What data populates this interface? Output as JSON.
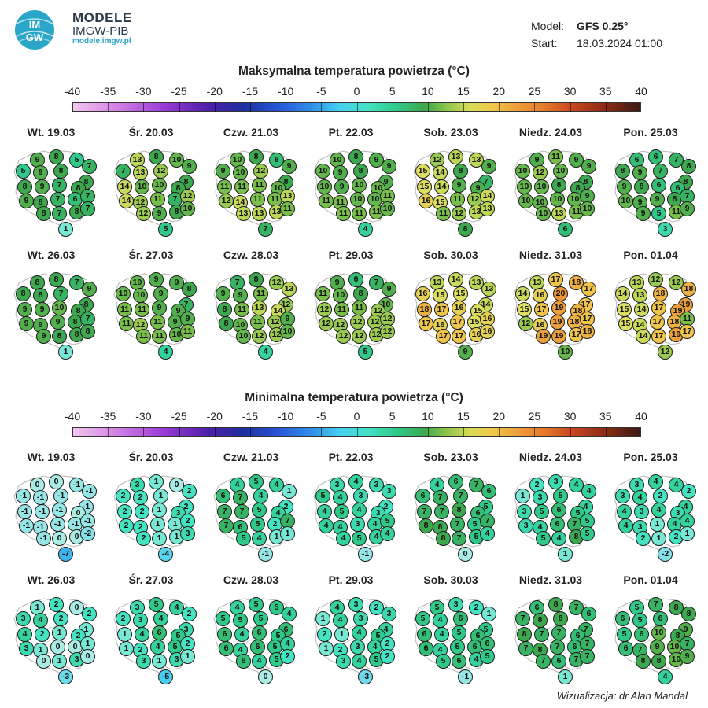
{
  "brand": {
    "logo_text": "IMGW",
    "title": "MODELE",
    "org": "IMGW-PIB",
    "url": "modele.imgw.pl"
  },
  "meta": {
    "model_label": "Model:",
    "model_value": "GFS 0.25°",
    "start_label": "Start:",
    "start_value": "18.03.2024 01:00"
  },
  "scale_ticks": [
    "-40",
    "-35",
    "-30",
    "-25",
    "-20",
    "-15",
    "-10",
    "-5",
    "0",
    "5",
    "10",
    "15",
    "20",
    "25",
    "30",
    "35",
    "40"
  ],
  "max_section": {
    "title": "Maksymalna temperatura powietrza (°C)",
    "days": [
      {
        "label": "Wt. 19.03",
        "values": [
          9,
          8,
          5,
          7,
          5,
          9,
          8,
          8,
          8,
          9,
          7,
          8,
          9,
          8,
          7,
          6,
          7,
          8,
          7,
          8,
          7,
          1
        ]
      },
      {
        "label": "Śr. 20.03",
        "values": [
          13,
          8,
          10,
          9,
          7,
          13,
          12,
          8,
          14,
          10,
          10,
          8,
          14,
          12,
          11,
          7,
          12,
          12,
          9,
          8,
          10,
          5
        ]
      },
      {
        "label": "Czw. 21.03",
        "values": [
          10,
          8,
          6,
          9,
          9,
          10,
          12,
          8,
          11,
          11,
          11,
          10,
          12,
          14,
          11,
          11,
          13,
          13,
          13,
          13,
          11,
          7
        ]
      },
      {
        "label": "Pt. 22.03",
        "values": [
          10,
          8,
          9,
          9,
          10,
          9,
          8,
          9,
          10,
          9,
          10,
          10,
          11,
          11,
          10,
          10,
          11,
          11,
          11,
          11,
          10,
          4
        ]
      },
      {
        "label": "Sob. 23.03",
        "values": [
          12,
          13,
          13,
          9,
          15,
          14,
          8,
          7,
          15,
          14,
          9,
          9,
          16,
          15,
          11,
          12,
          14,
          11,
          12,
          13,
          13,
          8
        ]
      },
      {
        "label": "Niedz. 24.03",
        "values": [
          9,
          11,
          9,
          9,
          10,
          12,
          10,
          8,
          10,
          10,
          8,
          8,
          10,
          10,
          10,
          10,
          9,
          10,
          13,
          11,
          10,
          6
        ]
      },
      {
        "label": "Pon. 25.03",
        "values": [
          6,
          6,
          7,
          8,
          8,
          9,
          7,
          8,
          9,
          8,
          6,
          6,
          10,
          9,
          9,
          8,
          7,
          9,
          5,
          11,
          9,
          3
        ]
      },
      {
        "label": "Wt. 26.03",
        "values": [
          8,
          8,
          7,
          9,
          8,
          8,
          7,
          8,
          9,
          9,
          10,
          8,
          9,
          9,
          9,
          8,
          7,
          9,
          8,
          8,
          8,
          1
        ]
      },
      {
        "label": "Śr. 27.03",
        "values": [
          10,
          9,
          9,
          8,
          10,
          10,
          9,
          7,
          11,
          11,
          9,
          9,
          11,
          12,
          11,
          9,
          9,
          11,
          11,
          10,
          11,
          4
        ]
      },
      {
        "label": "Czw. 28.03",
        "values": [
          7,
          8,
          12,
          13,
          9,
          9,
          11,
          12,
          8,
          11,
          13,
          14,
          8,
          10,
          11,
          12,
          9,
          10,
          12,
          12,
          10,
          4
        ]
      },
      {
        "label": "Pt. 29.03",
        "values": [
          9,
          6,
          7,
          9,
          11,
          10,
          8,
          10,
          12,
          11,
          11,
          12,
          12,
          12,
          12,
          12,
          12,
          12,
          12,
          12,
          12,
          5
        ]
      },
      {
        "label": "Sob. 30.03",
        "values": [
          13,
          14,
          13,
          13,
          16,
          15,
          15,
          14,
          18,
          17,
          16,
          15,
          17,
          16,
          17,
          15,
          16,
          17,
          17,
          16,
          16,
          9
        ]
      },
      {
        "label": "Niedz. 31.03",
        "values": [
          13,
          17,
          18,
          17,
          14,
          16,
          20,
          17,
          15,
          17,
          19,
          18,
          12,
          16,
          19,
          18,
          17,
          19,
          19,
          17,
          18,
          10
        ]
      },
      {
        "label": "Pon. 01.04",
        "values": [
          13,
          12,
          12,
          18,
          14,
          13,
          18,
          19,
          15,
          14,
          17,
          19,
          15,
          14,
          17,
          18,
          11,
          14,
          17,
          19,
          17,
          12
        ]
      }
    ]
  },
  "min_section": {
    "title": "Minimalna temperatura powietrza (°C)",
    "days": [
      {
        "label": "Wt. 19.03",
        "values": [
          0,
          0,
          -1,
          -1,
          -1,
          -1,
          -1,
          -1,
          -1,
          -1,
          -1,
          0,
          -1,
          -1,
          -1,
          -1,
          -1,
          -1,
          0,
          0,
          -2,
          -7
        ]
      },
      {
        "label": "Śr. 20.03",
        "values": [
          3,
          1,
          0,
          2,
          2,
          2,
          1,
          2,
          2,
          2,
          1,
          3,
          2,
          2,
          1,
          1,
          2,
          2,
          1,
          1,
          3,
          -4
        ]
      },
      {
        "label": "Czw. 21.03",
        "values": [
          4,
          5,
          4,
          1,
          6,
          7,
          4,
          2,
          7,
          7,
          5,
          4,
          7,
          6,
          5,
          2,
          7,
          5,
          4,
          1,
          1,
          -1
        ]
      },
      {
        "label": "Pt. 22.03",
        "values": [
          3,
          4,
          3,
          3,
          5,
          4,
          3,
          2,
          4,
          5,
          4,
          3,
          4,
          4,
          3,
          4,
          5,
          4,
          5,
          4,
          4,
          -1
        ]
      },
      {
        "label": "Sob. 23.03",
        "values": [
          4,
          6,
          7,
          6,
          6,
          7,
          7,
          5,
          7,
          7,
          8,
          6,
          8,
          8,
          7,
          5,
          7,
          8,
          7,
          5,
          4,
          0
        ]
      },
      {
        "label": "Niedz. 24.03",
        "values": [
          2,
          3,
          4,
          4,
          1,
          3,
          5,
          4,
          3,
          5,
          6,
          5,
          3,
          4,
          6,
          7,
          5,
          5,
          4,
          8,
          5,
          1
        ]
      },
      {
        "label": "Pon. 25.03",
        "values": [
          3,
          4,
          4,
          2,
          3,
          4,
          2,
          4,
          4,
          3,
          4,
          3,
          4,
          3,
          1,
          4,
          4,
          2,
          1,
          2,
          1,
          -2
        ]
      },
      {
        "label": "Wt. 26.03",
        "values": [
          1,
          2,
          0,
          2,
          3,
          4,
          2,
          1,
          4,
          2,
          1,
          2,
          3,
          1,
          0,
          0,
          1,
          0,
          1,
          3,
          0,
          -3
        ]
      },
      {
        "label": "Śr. 27.03",
        "values": [
          3,
          5,
          4,
          2,
          2,
          3,
          4,
          3,
          1,
          4,
          6,
          5,
          1,
          2,
          4,
          5,
          2,
          3,
          1,
          3,
          1,
          -5
        ]
      },
      {
        "label": "Czw. 28.03",
        "values": [
          4,
          5,
          5,
          4,
          5,
          5,
          5,
          6,
          6,
          4,
          6,
          5,
          6,
          4,
          6,
          5,
          4,
          6,
          4,
          5,
          2,
          0
        ]
      },
      {
        "label": "Pt. 29.03",
        "values": [
          4,
          3,
          2,
          3,
          1,
          4,
          3,
          4,
          2,
          1,
          4,
          5,
          1,
          2,
          3,
          4,
          2,
          3,
          4,
          5,
          2,
          -3
        ]
      },
      {
        "label": "Sob. 30.03",
        "values": [
          5,
          3,
          2,
          1,
          5,
          4,
          6,
          5,
          6,
          4,
          5,
          6,
          6,
          4,
          5,
          6,
          6,
          5,
          6,
          4,
          5,
          -1
        ]
      },
      {
        "label": "Niedz. 31.03",
        "values": [
          6,
          8,
          7,
          6,
          7,
          8,
          8,
          7,
          8,
          7,
          7,
          6,
          7,
          8,
          7,
          6,
          7,
          7,
          6,
          7,
          7,
          1
        ]
      },
      {
        "label": "Pon. 01.04",
        "values": [
          5,
          7,
          8,
          8,
          6,
          5,
          6,
          9,
          5,
          6,
          10,
          8,
          6,
          7,
          9,
          10,
          7,
          8,
          8,
          10,
          9,
          4
        ]
      }
    ]
  },
  "credit": "Wizualizacja: dr Alan Mandal"
}
